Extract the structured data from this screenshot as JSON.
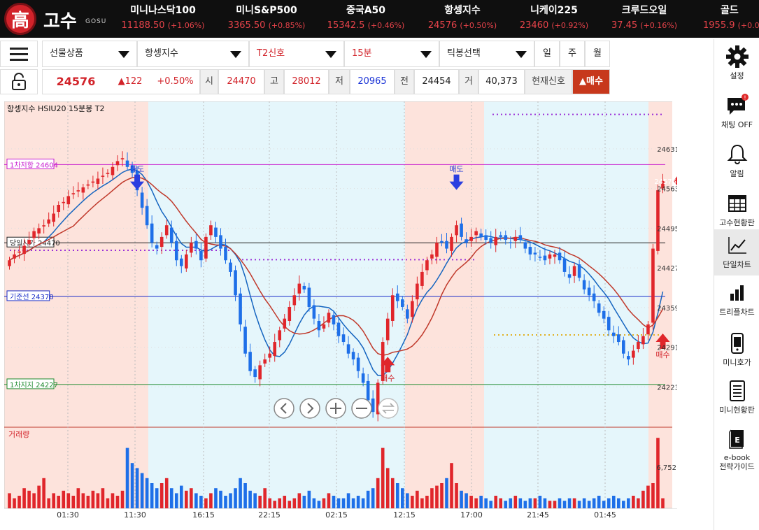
{
  "brand": {
    "symbol": "高",
    "name": "고수",
    "sub": "GOSU"
  },
  "tickers": [
    {
      "name": "미니나스닥100",
      "value": "11188.50",
      "change": "(+1.06%)"
    },
    {
      "name": "미니S&P500",
      "value": "3365.50",
      "change": "(+0.85%)"
    },
    {
      "name": "중국A50",
      "value": "15342.5",
      "change": "(+0.46%)"
    },
    {
      "name": "항셍지수",
      "value": "24576",
      "change": "(+0.50%)"
    },
    {
      "name": "니케이225",
      "value": "23460",
      "change": "(+0.92%)"
    },
    {
      "name": "크루드오일",
      "value": "37.45",
      "change": "(+0.16%)"
    },
    {
      "name": "골드",
      "value": "1955.9",
      "change": "(+0.0"
    }
  ],
  "toolbar": {
    "product": "선물상품",
    "index": "항셍지수",
    "signal": "T2신호",
    "interval": "15분",
    "tick": "틱봉선택",
    "periods": [
      "일",
      "주",
      "월"
    ]
  },
  "quote": {
    "price": "24576",
    "change": "▲122",
    "change_pct": "+0.50%",
    "open_label": "시",
    "open": "24470",
    "high_label": "고",
    "high": "28012",
    "low_label": "저",
    "low": "20965",
    "prev_label": "전",
    "prev": "24454",
    "vol_label": "거",
    "vol": "40,373",
    "signal_label": "현재신호",
    "signal_value": "▲매수"
  },
  "chart_data": {
    "type": "candlestick",
    "title": "항셍지수  HSIU20  15분봉  T2",
    "x_ticks": [
      "01:30",
      "11:30",
      "16:15",
      "22:15",
      "02:15",
      "12:15",
      "17:00",
      "21:45",
      "01:45"
    ],
    "y_ticks": [
      24631,
      24563,
      24495,
      24427,
      24359,
      24291,
      24223
    ],
    "ylim": [
      24155,
      24710
    ],
    "current_price": "24576",
    "lines": [
      {
        "label": "1차저항 24604",
        "value": 24604,
        "color": "#c81ecf"
      },
      {
        "label": "당일시가 24470",
        "value": 24470,
        "color": "#222222"
      },
      {
        "label": "기준선 24378",
        "value": 24378,
        "color": "#1a2ec8"
      },
      {
        "label": "1차지지 24227",
        "value": 24227,
        "color": "#1e8a2e"
      }
    ],
    "signals": [
      {
        "type": "sell",
        "label": "매도",
        "index": 26,
        "price": 24575
      },
      {
        "type": "sell",
        "label": "매도",
        "index": 91,
        "price": 24575
      },
      {
        "type": "buy",
        "label": "매수",
        "index": 77,
        "price": 24260
      },
      {
        "type": "buy",
        "label": "매수",
        "index": 133,
        "price": 24300
      }
    ],
    "volume_label": "거래량",
    "volume_tick": "6,752",
    "closes": [
      24440,
      24450,
      24455,
      24465,
      24475,
      24490,
      24495,
      24500,
      24510,
      24520,
      24535,
      24540,
      24550,
      24555,
      24560,
      24565,
      24570,
      24575,
      24580,
      24585,
      24590,
      24600,
      24610,
      24615,
      24600,
      24590,
      24560,
      24530,
      24500,
      24470,
      24460,
      24480,
      24500,
      24470,
      24440,
      24430,
      24450,
      24470,
      24460,
      24440,
      24480,
      24500,
      24480,
      24460,
      24440,
      24420,
      24380,
      24330,
      24280,
      24250,
      24240,
      24260,
      24270,
      24280,
      24300,
      24320,
      24340,
      24360,
      24380,
      24400,
      24390,
      24360,
      24340,
      24320,
      24330,
      24350,
      24330,
      24310,
      24300,
      24280,
      24270,
      24250,
      24230,
      24200,
      24180,
      24230,
      24300,
      24340,
      24380,
      24370,
      24360,
      24340,
      24370,
      24400,
      24420,
      24440,
      24450,
      24470,
      24470,
      24460,
      24480,
      24500,
      24480,
      24470,
      24480,
      24490,
      24480,
      24475,
      24470,
      24480,
      24480,
      24475,
      24470,
      24480,
      24475,
      24460,
      24450,
      24450,
      24445,
      24440,
      24450,
      24450,
      24440,
      24420,
      24410,
      24430,
      24410,
      24390,
      24380,
      24370,
      24350,
      24340,
      24320,
      24310,
      24300,
      24280,
      24270,
      24285,
      24300,
      24310,
      24330,
      24460,
      24560,
      24576
    ],
    "volumes": [
      30,
      20,
      25,
      40,
      35,
      30,
      45,
      60,
      20,
      30,
      25,
      35,
      30,
      25,
      40,
      30,
      25,
      35,
      30,
      40,
      20,
      30,
      25,
      35,
      120,
      90,
      80,
      70,
      60,
      50,
      40,
      50,
      60,
      40,
      30,
      45,
      35,
      40,
      30,
      25,
      20,
      30,
      40,
      35,
      25,
      30,
      40,
      60,
      50,
      35,
      30,
      25,
      40,
      20,
      15,
      20,
      25,
      15,
      20,
      30,
      25,
      35,
      20,
      15,
      20,
      30,
      25,
      20,
      20,
      30,
      20,
      25,
      20,
      35,
      40,
      60,
      120,
      80,
      60,
      50,
      40,
      30,
      25,
      35,
      20,
      25,
      40,
      45,
      50,
      60,
      90,
      50,
      35,
      30,
      25,
      20,
      25,
      20,
      15,
      25,
      20,
      15,
      20,
      25,
      20,
      15,
      20,
      20,
      25,
      20,
      15,
      15,
      20,
      15,
      20,
      20,
      15,
      20,
      15,
      20,
      25,
      15,
      20,
      25,
      20,
      15,
      20,
      25,
      20,
      35,
      45,
      50,
      140,
      20
    ]
  },
  "right_panel": [
    {
      "label": "설정",
      "icon": "gear-icon"
    },
    {
      "label": "채팅 OFF",
      "icon": "chat-icon"
    },
    {
      "label": "알림",
      "icon": "bell-icon"
    },
    {
      "label": "고수현황판",
      "icon": "table-icon"
    },
    {
      "label": "단일차트",
      "icon": "line-chart-icon"
    },
    {
      "label": "트리플차트",
      "icon": "bar-chart-icon"
    },
    {
      "label": "미니호가",
      "icon": "phone-icon"
    },
    {
      "label": "미니현황판",
      "icon": "list-icon"
    },
    {
      "label": "e-book\n전략가이드",
      "icon": "ebook-icon"
    }
  ],
  "chat_badge": "!"
}
